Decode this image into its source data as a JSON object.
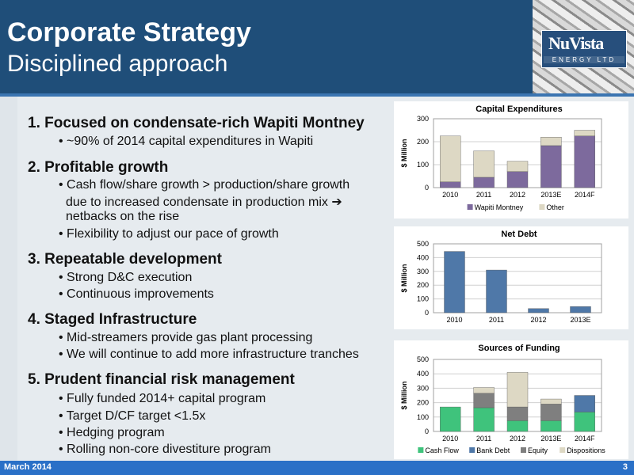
{
  "header": {
    "title": "Corporate Strategy",
    "subtitle": "Disciplined approach",
    "logo": "NuVista ENERGY LTD"
  },
  "strategy": [
    {
      "heading": "1.  Focused on condensate-rich Wapiti Montney",
      "points": [
        "• ~90% of 2014 capital expenditures in Wapiti"
      ]
    },
    {
      "heading": "2.  Profitable growth",
      "points": [
        "• Cash flow/share growth > production/share growth",
        "due to increased condensate in production mix ➔",
        "netbacks on the rise",
        "• Flexibility to adjust our pace of growth"
      ]
    },
    {
      "heading": "3.  Repeatable development",
      "points": [
        "• Strong D&C execution",
        "• Continuous improvements"
      ]
    },
    {
      "heading": "4.  Staged Infrastructure",
      "points": [
        "• Mid-streamers provide gas plant processing",
        "• We will continue to add more infrastructure tranches"
      ]
    },
    {
      "heading": "5.  Prudent financial risk management",
      "points": [
        "• Fully funded 2014+ capital program",
        "• Target D/CF target <1.5x",
        "• Hedging program",
        "• Rolling non-core divestiture program"
      ]
    }
  ],
  "footer": {
    "date": "March 2014",
    "page": "3"
  },
  "colors": {
    "header": "#1f4e79",
    "purple": "#7d6a9d",
    "beige": "#ddd8c4",
    "blue": "#4f78a8",
    "green": "#3fc37c",
    "gray": "#7f7f7f"
  },
  "chart_data": [
    {
      "type": "bar",
      "stacked": true,
      "title": "Capital Expenditures",
      "ylabel": "$ Million",
      "ylim": [
        0,
        300
      ],
      "yticks": [
        0,
        100,
        200,
        300
      ],
      "categories": [
        "2010",
        "2011",
        "2012",
        "2013E",
        "2014F"
      ],
      "series": [
        {
          "name": "Wapiti Montney",
          "values": [
            25,
            45,
            70,
            183,
            225
          ],
          "color": "#7d6a9d"
        },
        {
          "name": "Other",
          "values": [
            200,
            115,
            45,
            37,
            25
          ],
          "color": "#ddd8c4"
        }
      ],
      "legend": "bottom"
    },
    {
      "type": "bar",
      "title": "Net Debt",
      "ylabel": "$ Million",
      "ylim": [
        0,
        500
      ],
      "yticks": [
        0,
        100,
        200,
        300,
        400,
        500
      ],
      "categories": [
        "2010",
        "2011",
        "2012",
        "2013E"
      ],
      "series": [
        {
          "values": [
            445,
            310,
            30,
            45
          ],
          "color": "#4f78a8"
        }
      ]
    },
    {
      "type": "bar",
      "stacked": true,
      "title": "Sources of Funding",
      "ylabel": "$ Million",
      "ylim": [
        0,
        500
      ],
      "yticks": [
        0,
        100,
        200,
        300,
        400,
        500
      ],
      "categories": [
        "2010",
        "2011",
        "2012",
        "2013E",
        "2014F"
      ],
      "series": [
        {
          "name": "Cash Flow",
          "values": [
            170,
            165,
            75,
            75,
            135
          ],
          "color": "#3fc37c"
        },
        {
          "name": "Bank Debt",
          "values": [
            0,
            0,
            0,
            0,
            115
          ],
          "color": "#4f78a8"
        },
        {
          "name": "Equity",
          "values": [
            0,
            100,
            95,
            115,
            0
          ],
          "color": "#7f7f7f"
        },
        {
          "name": "Dispositions",
          "values": [
            0,
            40,
            240,
            35,
            0
          ],
          "color": "#ddd8c4"
        }
      ],
      "legend": "bottom"
    }
  ]
}
